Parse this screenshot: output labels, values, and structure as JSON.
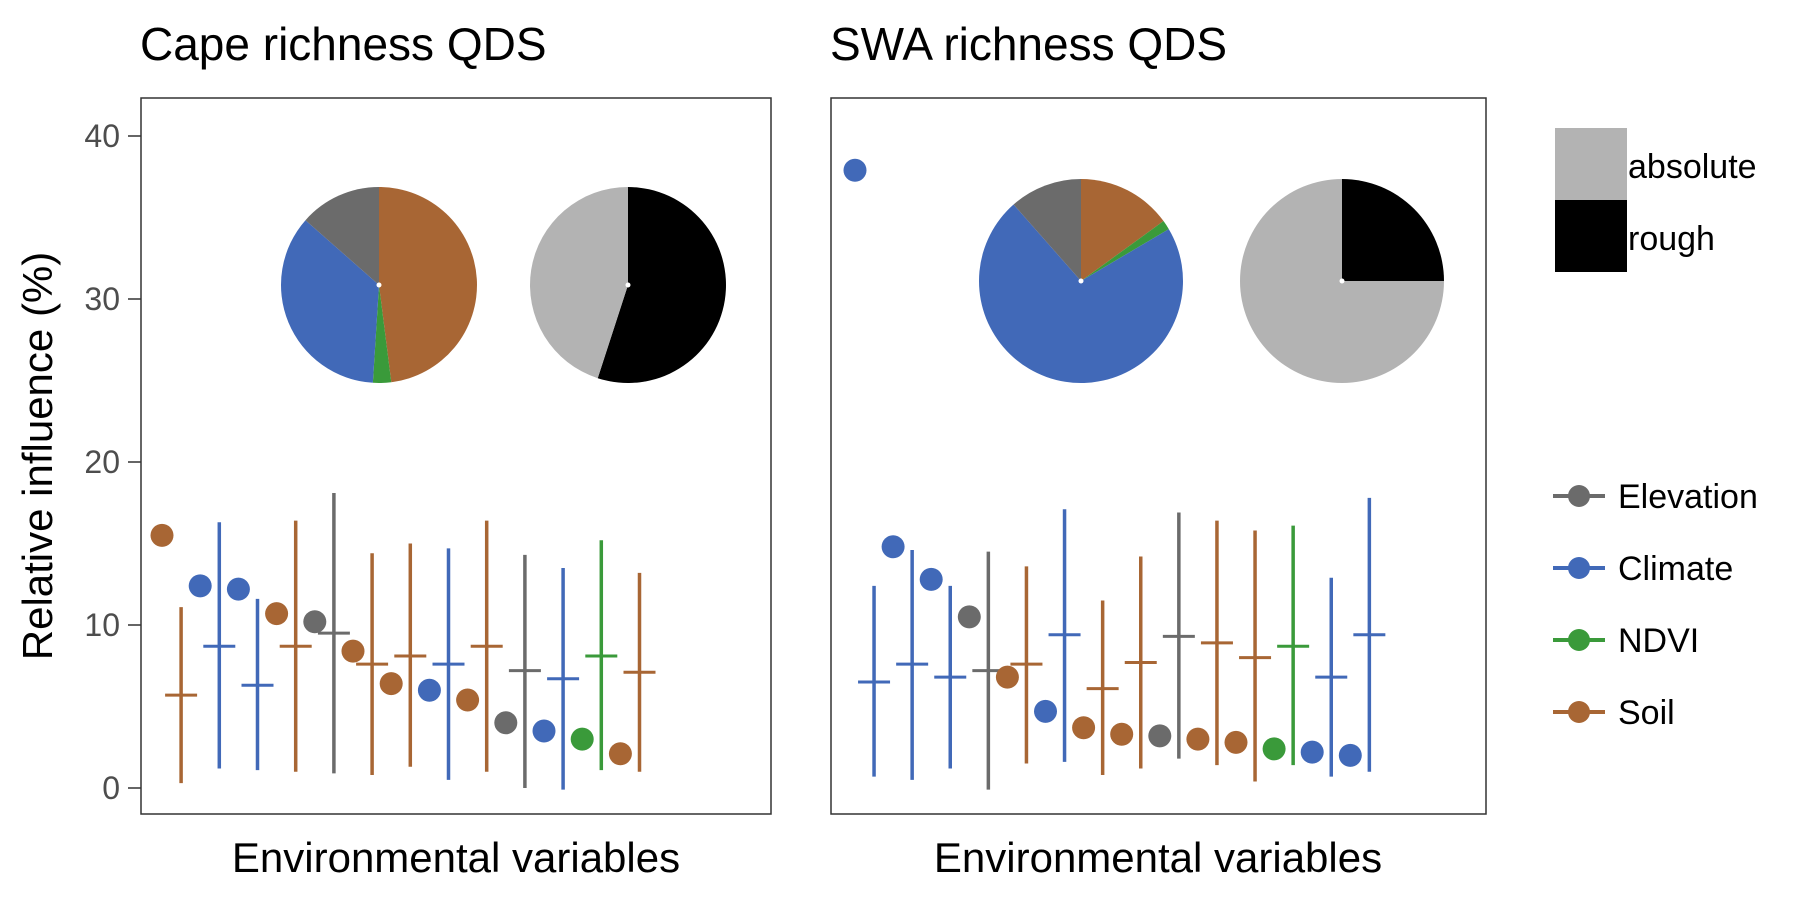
{
  "colors": {
    "Elevation": "#6b6b6b",
    "Climate": "#4169b8",
    "NDVI": "#3a9a3a",
    "Soil": "#a86634",
    "absolute": "#b3b3b3",
    "rough": "#000000"
  },
  "legend": {
    "pie": [
      {
        "label": "absolute",
        "key": "absolute"
      },
      {
        "label": "rough",
        "key": "rough"
      }
    ],
    "groups": [
      {
        "label": "Elevation",
        "key": "Elevation"
      },
      {
        "label": "Climate",
        "key": "Climate"
      },
      {
        "label": "NDVI",
        "key": "NDVI"
      },
      {
        "label": "Soil",
        "key": "Soil"
      }
    ]
  },
  "chart_data": [
    {
      "type": "scatter",
      "title": "Cape richness QDS",
      "xlabel": "Environmental variables",
      "ylabel": "Relative influence (%)",
      "ylim": [
        -2,
        42
      ],
      "yticks": [
        0,
        10,
        20,
        30,
        40
      ],
      "grid": false,
      "variables": [
        {
          "group": "Soil",
          "value": 15.5,
          "mean": 5.7,
          "low": 0.3,
          "high": 11.1
        },
        {
          "group": "Climate",
          "value": 12.4,
          "mean": 8.7,
          "low": 1.2,
          "high": 16.3
        },
        {
          "group": "Climate",
          "value": 12.2,
          "mean": 6.3,
          "low": 1.1,
          "high": 11.6
        },
        {
          "group": "Soil",
          "value": 10.7,
          "mean": 8.7,
          "low": 1.0,
          "high": 16.4
        },
        {
          "group": "Elevation",
          "value": 10.2,
          "mean": 9.5,
          "low": 0.9,
          "high": 18.1
        },
        {
          "group": "Soil",
          "value": 8.4,
          "mean": 7.6,
          "low": 0.8,
          "high": 14.4
        },
        {
          "group": "Soil",
          "value": 6.4,
          "mean": 8.1,
          "low": 1.3,
          "high": 15.0
        },
        {
          "group": "Climate",
          "value": 6.0,
          "mean": 7.6,
          "low": 0.5,
          "high": 14.7
        },
        {
          "group": "Soil",
          "value": 5.4,
          "mean": 8.7,
          "low": 1.0,
          "high": 16.4
        },
        {
          "group": "Elevation",
          "value": 4.0,
          "mean": 7.2,
          "low": 0.0,
          "high": 14.3
        },
        {
          "group": "Climate",
          "value": 3.5,
          "mean": 6.7,
          "low": -0.1,
          "high": 13.5
        },
        {
          "group": "NDVI",
          "value": 3.0,
          "mean": 8.1,
          "low": 1.1,
          "high": 15.2
        },
        {
          "group": "Soil",
          "value": 2.1,
          "mean": 7.1,
          "low": 1.0,
          "high": 13.2
        }
      ],
      "pies": [
        {
          "slices": [
            {
              "key": "Soil",
              "value": 48.0
            },
            {
              "key": "NDVI",
              "value": 3.0
            },
            {
              "key": "Climate",
              "value": 35.5
            },
            {
              "key": "Elevation",
              "value": 13.5
            }
          ]
        },
        {
          "slices": [
            {
              "key": "rough",
              "value": 55.0
            },
            {
              "key": "absolute",
              "value": 45.0
            }
          ]
        }
      ]
    },
    {
      "type": "scatter",
      "title": "SWA richness QDS",
      "xlabel": "Environmental variables",
      "ylabel": "",
      "ylim": [
        -2,
        42
      ],
      "yticks": [],
      "grid": false,
      "variables": [
        {
          "group": "Climate",
          "value": 37.9,
          "mean": 6.5,
          "low": 0.7,
          "high": 12.4
        },
        {
          "group": "Climate",
          "value": 14.8,
          "mean": 7.6,
          "low": 0.5,
          "high": 14.6
        },
        {
          "group": "Climate",
          "value": 12.8,
          "mean": 6.8,
          "low": 1.2,
          "high": 12.4
        },
        {
          "group": "Elevation",
          "value": 10.5,
          "mean": 7.2,
          "low": -0.1,
          "high": 14.5
        },
        {
          "group": "Soil",
          "value": 6.8,
          "mean": 7.6,
          "low": 1.5,
          "high": 13.6
        },
        {
          "group": "Climate",
          "value": 4.7,
          "mean": 9.4,
          "low": 1.6,
          "high": 17.1
        },
        {
          "group": "Soil",
          "value": 3.7,
          "mean": 6.1,
          "low": 0.8,
          "high": 11.5
        },
        {
          "group": "Soil",
          "value": 3.3,
          "mean": 7.7,
          "low": 1.2,
          "high": 14.2
        },
        {
          "group": "Elevation",
          "value": 3.2,
          "mean": 9.3,
          "low": 1.8,
          "high": 16.9
        },
        {
          "group": "Soil",
          "value": 3.0,
          "mean": 8.9,
          "low": 1.4,
          "high": 16.4
        },
        {
          "group": "Soil",
          "value": 2.8,
          "mean": 8.0,
          "low": 0.4,
          "high": 15.8
        },
        {
          "group": "NDVI",
          "value": 2.4,
          "mean": 8.7,
          "low": 1.4,
          "high": 16.1
        },
        {
          "group": "Climate",
          "value": 2.2,
          "mean": 6.8,
          "low": 0.7,
          "high": 12.9
        },
        {
          "group": "Climate",
          "value": 2.0,
          "mean": 9.4,
          "low": 1.0,
          "high": 17.8
        }
      ],
      "pies": [
        {
          "slices": [
            {
              "key": "Soil",
              "value": 15.0
            },
            {
              "key": "NDVI",
              "value": 1.5
            },
            {
              "key": "Climate",
              "value": 72.0
            },
            {
              "key": "Elevation",
              "value": 11.5
            }
          ]
        },
        {
          "slices": [
            {
              "key": "rough",
              "value": 25.0
            },
            {
              "key": "absolute",
              "value": 75.0
            }
          ]
        }
      ]
    }
  ]
}
